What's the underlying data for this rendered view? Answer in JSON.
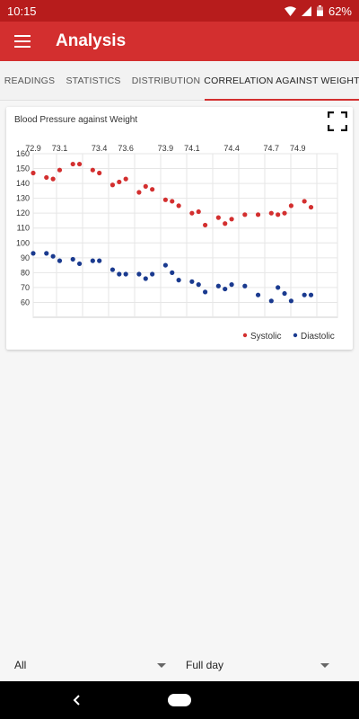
{
  "status": {
    "time": "10:15",
    "battery": "62%"
  },
  "appbar": {
    "title": "Analysis"
  },
  "tabs": [
    {
      "label": "READINGS",
      "active": false
    },
    {
      "label": "STATISTICS",
      "active": false
    },
    {
      "label": "DISTRIBUTION",
      "active": false
    },
    {
      "label": "CORRELATION AGAINST WEIGHT",
      "active": true
    }
  ],
  "card": {
    "title": "Blood Pressure against Weight"
  },
  "chart_data": {
    "type": "scatter",
    "title": "Blood Pressure against Weight",
    "xlabel": "",
    "ylabel": "",
    "xlim": [
      72.9,
      75.2
    ],
    "ylim": [
      50,
      160
    ],
    "x_ticks": [
      "72.9",
      "73.1",
      "73.4",
      "73.6",
      "73.9",
      "74.1",
      "74.4",
      "74.7",
      "74.9"
    ],
    "x_tick_values": [
      72.9,
      73.1,
      73.4,
      73.6,
      73.9,
      74.1,
      74.4,
      74.7,
      74.9
    ],
    "y_ticks": [
      "160",
      "150",
      "140",
      "130",
      "120",
      "110",
      "100",
      "90",
      "80",
      "70",
      "60"
    ],
    "y_tick_values": [
      160,
      150,
      140,
      130,
      120,
      110,
      100,
      90,
      80,
      70,
      60
    ],
    "x_axis_position": "top",
    "grid": true,
    "legend": "bottom-right",
    "series": [
      {
        "name": "Systolic",
        "color": "#d32f2f",
        "points": [
          [
            72.9,
            147
          ],
          [
            73.0,
            144
          ],
          [
            73.05,
            143
          ],
          [
            73.1,
            149
          ],
          [
            73.2,
            153
          ],
          [
            73.25,
            153
          ],
          [
            73.35,
            149
          ],
          [
            73.4,
            147
          ],
          [
            73.5,
            139
          ],
          [
            73.55,
            141
          ],
          [
            73.6,
            143
          ],
          [
            73.7,
            134
          ],
          [
            73.75,
            138
          ],
          [
            73.8,
            136
          ],
          [
            73.9,
            129
          ],
          [
            73.95,
            128
          ],
          [
            74.0,
            125
          ],
          [
            74.1,
            120
          ],
          [
            74.15,
            121
          ],
          [
            74.2,
            112
          ],
          [
            74.3,
            117
          ],
          [
            74.35,
            113
          ],
          [
            74.4,
            116
          ],
          [
            74.5,
            119
          ],
          [
            74.6,
            119
          ],
          [
            74.7,
            120
          ],
          [
            74.75,
            119
          ],
          [
            74.8,
            120
          ],
          [
            74.85,
            125
          ],
          [
            74.95,
            128
          ],
          [
            75.0,
            124
          ]
        ]
      },
      {
        "name": "Diastolic",
        "color": "#1a3a8f",
        "points": [
          [
            72.9,
            93
          ],
          [
            73.0,
            93
          ],
          [
            73.05,
            91
          ],
          [
            73.1,
            88
          ],
          [
            73.2,
            89
          ],
          [
            73.25,
            86
          ],
          [
            73.35,
            88
          ],
          [
            73.4,
            88
          ],
          [
            73.5,
            82
          ],
          [
            73.55,
            79
          ],
          [
            73.6,
            79
          ],
          [
            73.7,
            79
          ],
          [
            73.75,
            76
          ],
          [
            73.8,
            79
          ],
          [
            73.9,
            85
          ],
          [
            73.95,
            80
          ],
          [
            74.0,
            75
          ],
          [
            74.1,
            74
          ],
          [
            74.15,
            72
          ],
          [
            74.2,
            67
          ],
          [
            74.3,
            71
          ],
          [
            74.35,
            69
          ],
          [
            74.4,
            72
          ],
          [
            74.5,
            71
          ],
          [
            74.6,
            65
          ],
          [
            74.7,
            61
          ],
          [
            74.75,
            70
          ],
          [
            74.8,
            66
          ],
          [
            74.85,
            61
          ],
          [
            74.95,
            65
          ],
          [
            75.0,
            65
          ]
        ]
      }
    ]
  },
  "filters": {
    "left": "All",
    "right": "Full day"
  }
}
